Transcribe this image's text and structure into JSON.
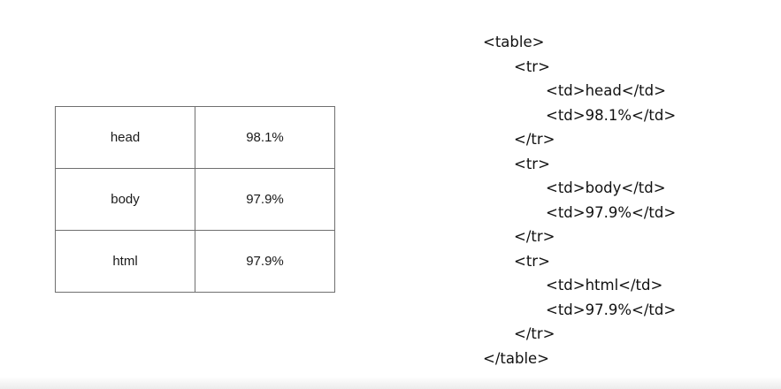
{
  "table": {
    "rows": [
      {
        "name": "head",
        "value": "98.1%"
      },
      {
        "name": "body",
        "value": "97.9%"
      },
      {
        "name": "html",
        "value": "97.9%"
      }
    ]
  },
  "code": {
    "lines": [
      {
        "text": "<table>",
        "indent": 0
      },
      {
        "text": "<tr>",
        "indent": 1
      },
      {
        "text": "<td>head</td>",
        "indent": 2
      },
      {
        "text": "<td>98.1%</td>",
        "indent": 2
      },
      {
        "text": "</tr>",
        "indent": 1
      },
      {
        "text": "<tr>",
        "indent": 1
      },
      {
        "text": "<td>body</td>",
        "indent": 2
      },
      {
        "text": "<td>97.9%</td>",
        "indent": 2
      },
      {
        "text": "</tr>",
        "indent": 1
      },
      {
        "text": "<tr>",
        "indent": 1
      },
      {
        "text": "<td>html</td>",
        "indent": 2
      },
      {
        "text": "<td>97.9%</td>",
        "indent": 2
      },
      {
        "text": "</tr>",
        "indent": 1
      },
      {
        "text": "</table>",
        "indent": 0
      }
    ]
  },
  "colors": {
    "border": "#6f6f6f",
    "text": "#1a1a1a",
    "background": "#ffffff"
  }
}
